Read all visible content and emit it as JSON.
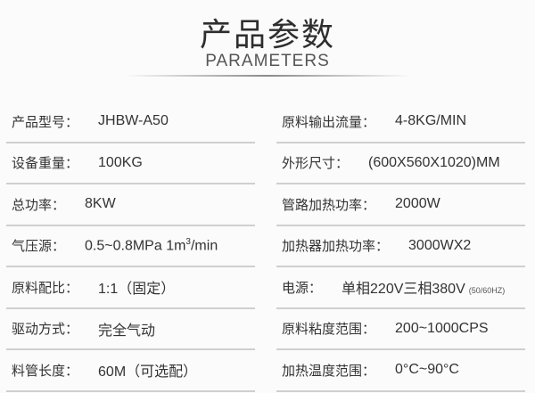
{
  "header": {
    "title": "产品参数",
    "subtitle": "PARAMETERS"
  },
  "left": [
    {
      "label": "产品型号：",
      "value": "JHBW-A50"
    },
    {
      "label": "设备重量：",
      "value": "100KG"
    },
    {
      "label": "总功率：",
      "value": "8KW"
    },
    {
      "label": "气压源：",
      "value": "0.5~0.8MPa 1m",
      "sup": "3",
      "suffix": "/min"
    },
    {
      "label": "原料配比：",
      "value": "1:1（固定）"
    },
    {
      "label": "驱动方式：",
      "value": "完全气动"
    },
    {
      "label": "料管长度：",
      "value": "60M（可选配）"
    }
  ],
  "right": [
    {
      "label": "原料输出流量：",
      "value": "4-8KG/MIN"
    },
    {
      "label": "外形尺寸：",
      "value": "(600X560X1020)MM"
    },
    {
      "label": "管路加热功率：",
      "value": "2000W"
    },
    {
      "label": "加热器加热功率：",
      "value": "3000WX2"
    },
    {
      "label": "电源：",
      "value": "单相220V三相380V",
      "note": "(50/60HZ)"
    },
    {
      "label": "原料粘度范围：",
      "value": "200~1000CPS"
    },
    {
      "label": "加热温度范围：",
      "value": "0°C~90°C"
    }
  ]
}
